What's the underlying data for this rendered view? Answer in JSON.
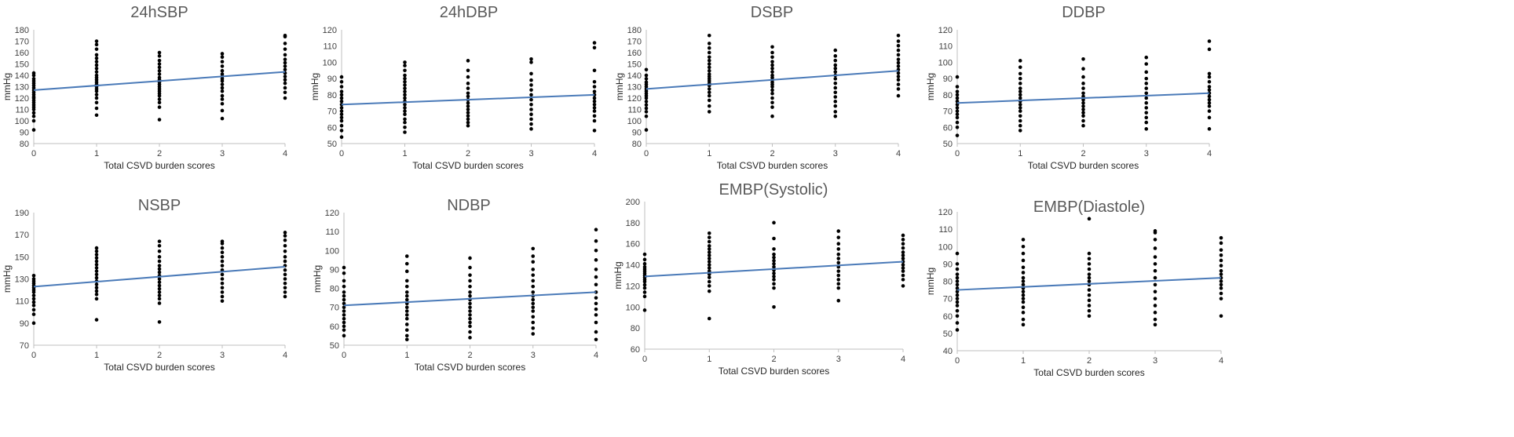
{
  "chart_data": [
    {
      "type": "scatter",
      "title": "24hSBP",
      "xlabel": "Total CSVD burden scores",
      "ylabel": "mmHg",
      "xlim": [
        0,
        4
      ],
      "ylim": [
        80,
        180
      ],
      "xticks": [
        "0",
        "1",
        "2",
        "3",
        "4"
      ],
      "yticks": [
        "80",
        "90",
        "100",
        "110",
        "120",
        "130",
        "140",
        "150",
        "160",
        "170",
        "180"
      ],
      "trendline": {
        "x": [
          0,
          4
        ],
        "y": [
          127,
          143
        ],
        "color": "#4a7ab8"
      },
      "series": [
        {
          "x": 0,
          "y": [
            92,
            100,
            104,
            107,
            110,
            112,
            114,
            116,
            118,
            120,
            121,
            123,
            125,
            127,
            129,
            131,
            133,
            135,
            137,
            140,
            142
          ]
        },
        {
          "x": 1,
          "y": [
            105,
            111,
            116,
            120,
            123,
            126,
            128,
            130,
            132,
            134,
            136,
            138,
            140,
            143,
            146,
            149,
            152,
            155,
            158,
            163,
            167,
            170
          ]
        },
        {
          "x": 2,
          "y": [
            101,
            112,
            116,
            119,
            122,
            124,
            126,
            128,
            130,
            132,
            134,
            136,
            138,
            141,
            144,
            147,
            150,
            153,
            157,
            160
          ]
        },
        {
          "x": 3,
          "y": [
            102,
            109,
            115,
            119,
            122,
            126,
            129,
            132,
            135,
            137,
            139,
            141,
            144,
            148,
            152,
            156,
            159
          ]
        },
        {
          "x": 4,
          "y": [
            120,
            125,
            129,
            133,
            136,
            139,
            142,
            145,
            148,
            151,
            154,
            158,
            163,
            168,
            174,
            175
          ]
        }
      ]
    },
    {
      "type": "scatter",
      "title": "24hDBP",
      "xlabel": "Total CSVD burden scores",
      "ylabel": "mmHg",
      "xlim": [
        0,
        4
      ],
      "ylim": [
        50,
        120
      ],
      "xticks": [
        "0",
        "1",
        "2",
        "3",
        "4"
      ],
      "yticks": [
        "50",
        "60",
        "70",
        "80",
        "90",
        "100",
        "110",
        "120"
      ],
      "trendline": {
        "x": [
          0,
          4
        ],
        "y": [
          74,
          80
        ],
        "color": "#4a7ab8"
      },
      "series": [
        {
          "x": 0,
          "y": [
            54,
            58,
            61,
            64,
            66,
            68,
            70,
            72,
            74,
            76,
            78,
            80,
            82,
            85,
            88,
            91
          ]
        },
        {
          "x": 1,
          "y": [
            57,
            60,
            63,
            65,
            68,
            70,
            72,
            74,
            76,
            78,
            80,
            82,
            84,
            86,
            88,
            90,
            92,
            95,
            98,
            100
          ]
        },
        {
          "x": 2,
          "y": [
            61,
            63,
            65,
            67,
            69,
            71,
            73,
            75,
            77,
            79,
            81,
            84,
            87,
            91,
            95,
            101
          ]
        },
        {
          "x": 3,
          "y": [
            59,
            62,
            65,
            68,
            71,
            74,
            77,
            80,
            83,
            86,
            89,
            93,
            100,
            102
          ]
        },
        {
          "x": 4,
          "y": [
            58,
            64,
            67,
            70,
            72,
            74,
            76,
            78,
            80,
            82,
            85,
            88,
            95,
            109,
            112
          ]
        }
      ]
    },
    {
      "type": "scatter",
      "title": "DSBP",
      "xlabel": "Total CSVD burden scores",
      "ylabel": "mmHg",
      "xlim": [
        0,
        4
      ],
      "ylim": [
        80,
        180
      ],
      "xticks": [
        "0",
        "1",
        "2",
        "3",
        "4"
      ],
      "yticks": [
        "80",
        "90",
        "100",
        "110",
        "120",
        "130",
        "140",
        "150",
        "160",
        "170",
        "180"
      ],
      "trendline": {
        "x": [
          0,
          4
        ],
        "y": [
          128,
          144
        ],
        "color": "#4a7ab8"
      },
      "series": [
        {
          "x": 0,
          "y": [
            92,
            104,
            108,
            111,
            114,
            117,
            120,
            122,
            124,
            126,
            128,
            130,
            132,
            134,
            137,
            140,
            145
          ]
        },
        {
          "x": 1,
          "y": [
            108,
            113,
            118,
            122,
            125,
            128,
            131,
            133,
            135,
            137,
            139,
            141,
            144,
            147,
            150,
            153,
            156,
            160,
            164,
            168,
            175
          ]
        },
        {
          "x": 2,
          "y": [
            104,
            112,
            116,
            120,
            124,
            127,
            130,
            132,
            134,
            136,
            138,
            140,
            143,
            146,
            149,
            152,
            156,
            160,
            165
          ]
        },
        {
          "x": 3,
          "y": [
            104,
            108,
            113,
            117,
            121,
            125,
            129,
            133,
            137,
            140,
            143,
            146,
            149,
            153,
            157,
            162
          ]
        },
        {
          "x": 4,
          "y": [
            122,
            128,
            132,
            136,
            139,
            142,
            145,
            148,
            151,
            154,
            158,
            162,
            166,
            170,
            175
          ]
        }
      ]
    },
    {
      "type": "scatter",
      "title": "DDBP",
      "xlabel": "Total CSVD burden scores",
      "ylabel": "mmHg",
      "xlim": [
        0,
        4
      ],
      "ylim": [
        50,
        120
      ],
      "xticks": [
        "0",
        "1",
        "2",
        "3",
        "4"
      ],
      "yticks": [
        "50",
        "60",
        "70",
        "80",
        "90",
        "100",
        "110",
        "120"
      ],
      "trendline": {
        "x": [
          0,
          4
        ],
        "y": [
          75,
          81
        ],
        "color": "#4a7ab8"
      },
      "series": [
        {
          "x": 0,
          "y": [
            55,
            60,
            63,
            66,
            68,
            70,
            72,
            74,
            76,
            78,
            80,
            82,
            85,
            91
          ]
        },
        {
          "x": 1,
          "y": [
            58,
            61,
            64,
            67,
            70,
            72,
            74,
            76,
            78,
            80,
            82,
            84,
            87,
            90,
            93,
            97,
            101
          ]
        },
        {
          "x": 2,
          "y": [
            61,
            64,
            67,
            69,
            71,
            73,
            75,
            77,
            79,
            81,
            84,
            87,
            91,
            96,
            102
          ]
        },
        {
          "x": 3,
          "y": [
            59,
            63,
            66,
            69,
            72,
            75,
            78,
            81,
            84,
            87,
            90,
            94,
            99,
            103
          ]
        },
        {
          "x": 4,
          "y": [
            59,
            66,
            70,
            73,
            75,
            77,
            79,
            81,
            83,
            85,
            88,
            91,
            93,
            108,
            113
          ]
        }
      ]
    },
    {
      "type": "scatter",
      "title": "NSBP",
      "xlabel": "Total CSVD burden scores",
      "ylabel": "mmHg",
      "xlim": [
        0,
        4
      ],
      "ylim": [
        70,
        190
      ],
      "xticks": [
        "0",
        "1",
        "2",
        "3",
        "4"
      ],
      "yticks": [
        "70",
        "90",
        "110",
        "130",
        "150",
        "170",
        "190"
      ],
      "trendline": {
        "x": [
          0,
          4
        ],
        "y": [
          123,
          141
        ],
        "color": "#4a7ab8"
      },
      "series": [
        {
          "x": 0,
          "y": [
            90,
            98,
            102,
            106,
            109,
            112,
            115,
            118,
            120,
            122,
            124,
            126,
            128,
            130,
            133
          ]
        },
        {
          "x": 1,
          "y": [
            93,
            112,
            116,
            119,
            122,
            125,
            128,
            131,
            134,
            137,
            140,
            143,
            146,
            149,
            152,
            155,
            158
          ]
        },
        {
          "x": 2,
          "y": [
            91,
            108,
            112,
            115,
            118,
            121,
            124,
            127,
            130,
            133,
            136,
            139,
            142,
            146,
            150,
            155,
            160,
            164
          ]
        },
        {
          "x": 3,
          "y": [
            110,
            114,
            118,
            122,
            126,
            130,
            134,
            138,
            142,
            146,
            150,
            154,
            158,
            162,
            164
          ]
        },
        {
          "x": 4,
          "y": [
            114,
            118,
            122,
            126,
            130,
            134,
            138,
            142,
            146,
            150,
            155,
            160,
            165,
            169,
            172
          ]
        }
      ]
    },
    {
      "type": "scatter",
      "title": "NDBP",
      "xlabel": "Total CSVD burden scores",
      "ylabel": "mmHg",
      "xlim": [
        0,
        4
      ],
      "ylim": [
        50,
        120
      ],
      "xticks": [
        "0",
        "1",
        "2",
        "3",
        "4"
      ],
      "yticks": [
        "50",
        "60",
        "70",
        "80",
        "90",
        "100",
        "110",
        "120"
      ],
      "trendline": {
        "x": [
          0,
          4
        ],
        "y": [
          71,
          78
        ],
        "color": "#4a7ab8"
      },
      "series": [
        {
          "x": 0,
          "y": [
            55,
            58,
            60,
            62,
            64,
            66,
            68,
            70,
            72,
            74,
            76,
            78,
            81,
            84,
            88,
            91
          ]
        },
        {
          "x": 1,
          "y": [
            53,
            55,
            58,
            61,
            64,
            66,
            68,
            70,
            72,
            74,
            76,
            78,
            81,
            84,
            89,
            93,
            97
          ]
        },
        {
          "x": 2,
          "y": [
            54,
            57,
            60,
            62,
            64,
            66,
            68,
            70,
            72,
            74,
            76,
            78,
            81,
            84,
            87,
            91,
            96
          ]
        },
        {
          "x": 3,
          "y": [
            56,
            59,
            62,
            65,
            68,
            70,
            72,
            74,
            76,
            78,
            81,
            84,
            87,
            90,
            94,
            97,
            101
          ]
        },
        {
          "x": 4,
          "y": [
            53,
            57,
            62,
            66,
            69,
            72,
            75,
            78,
            82,
            86,
            90,
            95,
            100,
            105,
            111
          ]
        }
      ]
    },
    {
      "type": "scatter",
      "title": "EMBP(Systolic)",
      "xlabel": "Total CSVD burden scores",
      "ylabel": "mmHg",
      "xlim": [
        0,
        4
      ],
      "ylim": [
        60,
        200
      ],
      "xticks": [
        "0",
        "1",
        "2",
        "3",
        "4"
      ],
      "yticks": [
        "60",
        "80",
        "100",
        "120",
        "140",
        "160",
        "180",
        "200"
      ],
      "trendline": {
        "x": [
          0,
          4
        ],
        "y": [
          129,
          143
        ],
        "color": "#4a7ab8"
      },
      "series": [
        {
          "x": 0,
          "y": [
            97,
            110,
            114,
            118,
            121,
            124,
            126,
            128,
            130,
            132,
            134,
            136,
            138,
            141,
            145,
            150
          ]
        },
        {
          "x": 1,
          "y": [
            89,
            115,
            120,
            124,
            128,
            131,
            134,
            137,
            140,
            143,
            146,
            149,
            152,
            155,
            158,
            162,
            166,
            170
          ]
        },
        {
          "x": 2,
          "y": [
            100,
            118,
            122,
            126,
            129,
            132,
            135,
            138,
            141,
            144,
            147,
            150,
            155,
            165,
            180
          ]
        },
        {
          "x": 3,
          "y": [
            106,
            118,
            122,
            126,
            130,
            134,
            138,
            142,
            146,
            150,
            155,
            160,
            166,
            172
          ]
        },
        {
          "x": 4,
          "y": [
            120,
            126,
            130,
            134,
            137,
            140,
            143,
            146,
            149,
            152,
            156,
            160,
            164,
            168
          ]
        }
      ]
    },
    {
      "type": "scatter",
      "title": "EMBP(Diastole)",
      "xlabel": "Total CSVD burden scores",
      "ylabel": "mmHg",
      "xlim": [
        0,
        4
      ],
      "ylim": [
        40,
        120
      ],
      "xticks": [
        "0",
        "1",
        "2",
        "3",
        "4"
      ],
      "yticks": [
        "40",
        "50",
        "60",
        "70",
        "80",
        "90",
        "100",
        "110",
        "120"
      ],
      "trendline": {
        "x": [
          0,
          4
        ],
        "y": [
          75,
          82
        ],
        "color": "#4a7ab8"
      },
      "series": [
        {
          "x": 0,
          "y": [
            52,
            56,
            60,
            63,
            66,
            68,
            70,
            72,
            74,
            76,
            78,
            80,
            82,
            84,
            87,
            90,
            96
          ]
        },
        {
          "x": 1,
          "y": [
            55,
            58,
            62,
            65,
            68,
            70,
            72,
            74,
            76,
            78,
            80,
            82,
            85,
            88,
            92,
            96,
            100,
            104
          ]
        },
        {
          "x": 2,
          "y": [
            60,
            63,
            66,
            69,
            72,
            75,
            78,
            80,
            82,
            84,
            87,
            90,
            93,
            96,
            116
          ]
        },
        {
          "x": 3,
          "y": [
            55,
            58,
            62,
            66,
            70,
            74,
            78,
            82,
            86,
            90,
            94,
            99,
            104,
            108,
            109
          ]
        },
        {
          "x": 4,
          "y": [
            60,
            70,
            73,
            76,
            78,
            80,
            82,
            84,
            86,
            89,
            92,
            95,
            98,
            102,
            105
          ]
        }
      ]
    }
  ]
}
